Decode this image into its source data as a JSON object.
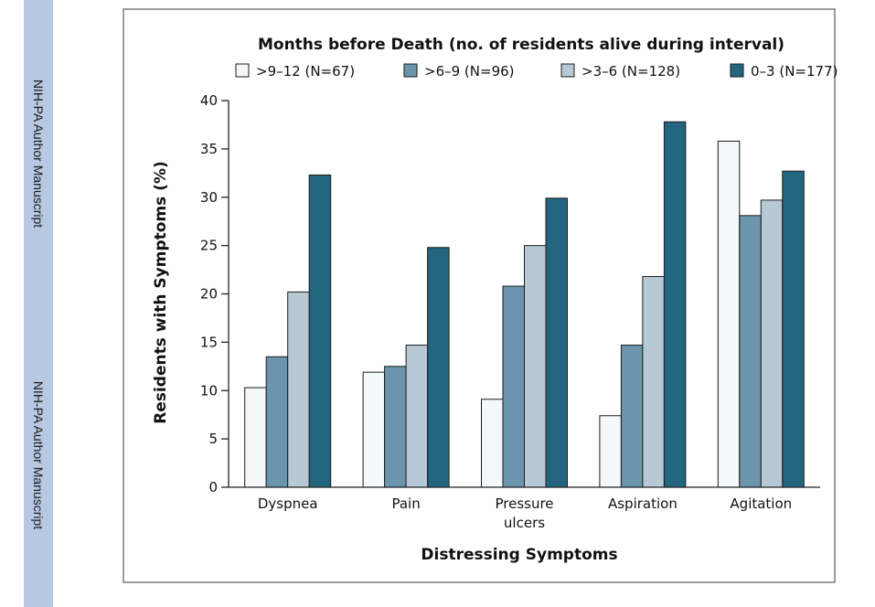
{
  "sidebar": {
    "labels": [
      "NIH-PA Author Manuscript",
      "NIH-PA Author Manuscript"
    ]
  },
  "chart_data": {
    "type": "bar",
    "legend_title": "Months before Death (no. of residents alive during interval)",
    "xlabel": "Distressing Symptoms",
    "ylabel": "Residents with Symptoms (%)",
    "ylim": [
      0,
      40
    ],
    "yticks": [
      0,
      5,
      10,
      15,
      20,
      25,
      30,
      35,
      40
    ],
    "categories": [
      [
        "Dyspnea"
      ],
      [
        "Pain"
      ],
      [
        "Pressure",
        "ulcers"
      ],
      [
        "Aspiration"
      ],
      [
        "Agitation"
      ]
    ],
    "series": [
      {
        "name": ">9–12 (N=67)",
        "color": "#f4f8fa",
        "values": [
          10.3,
          11.9,
          9.1,
          7.4,
          35.8
        ]
      },
      {
        "name": ">6–9 (N=96)",
        "color": "#6a95ad",
        "values": [
          13.5,
          12.5,
          20.8,
          14.7,
          28.1
        ]
      },
      {
        "name": ">3–6 (N=128)",
        "color": "#b7c9d5",
        "values": [
          20.2,
          14.7,
          25.0,
          21.8,
          29.7
        ]
      },
      {
        "name": "0–3 (N=177)",
        "color": "#23657f",
        "values": [
          32.3,
          24.8,
          29.9,
          37.8,
          32.7
        ]
      }
    ],
    "legend_position": "top",
    "grid": false
  }
}
